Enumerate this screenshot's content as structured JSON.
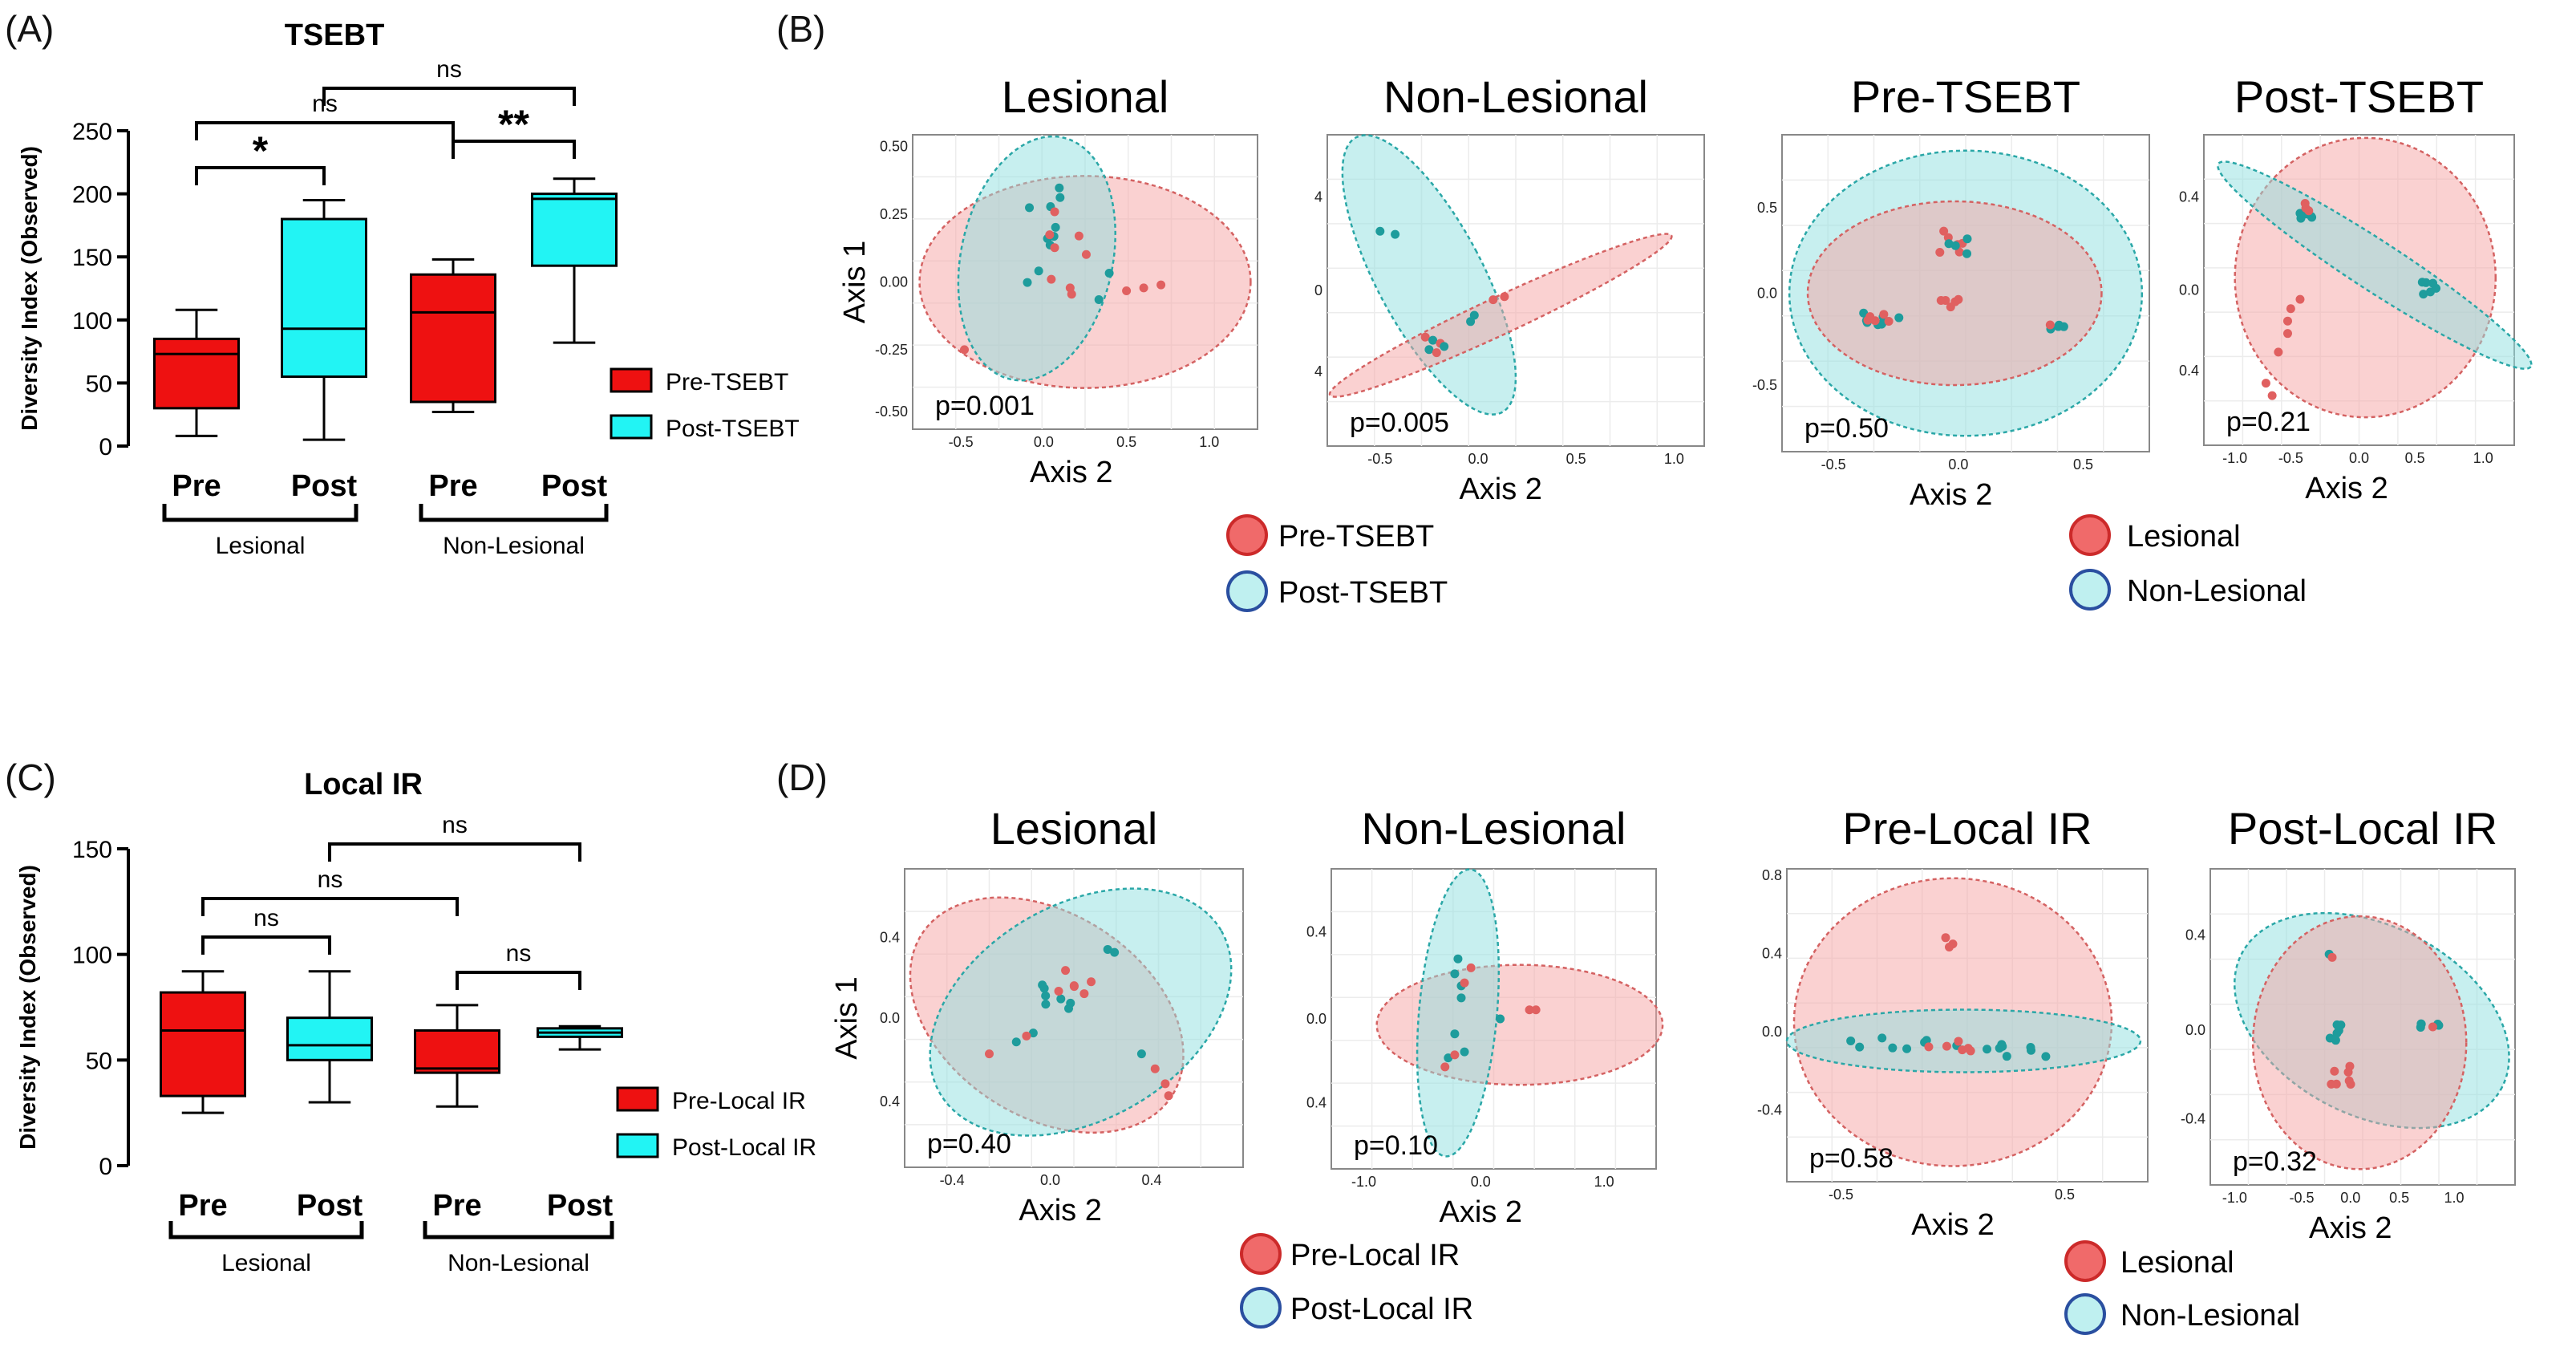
{
  "figure": {
    "panels": {
      "A": "(A)",
      "B": "(B)",
      "C": "(C)",
      "D": "(D)"
    },
    "colors": {
      "red": "#ee1111",
      "cyan": "#22f4f4",
      "ellipse_red": "#f5a3a3",
      "ellipse_cyan": "#8fe0e0",
      "point_red": "#e06060",
      "point_cyan": "#1e9c9c"
    },
    "legend_boxA": {
      "pre": "Pre-TSEBT",
      "post": "Post-TSEBT"
    },
    "legend_boxC": {
      "pre": "Pre-Local IR",
      "post": "Post-Local IR"
    },
    "legend_B_left": {
      "a": "Pre-TSEBT",
      "b": "Post-TSEBT"
    },
    "legend_B_right": {
      "a": "Lesional",
      "b": "Non-Lesional"
    },
    "legend_D_left": {
      "a": "Pre-Local IR",
      "b": "Post-Local IR"
    },
    "legend_D_right": {
      "a": "Lesional",
      "b": "Non-Lesional"
    },
    "pca_axis_x": "Axis 2",
    "pca_axis_y": "Axis 1"
  },
  "chart_data": [
    {
      "id": "A",
      "type": "box",
      "title": "TSEBT",
      "ylabel": "Diversity Index (Observed)",
      "ylim": [
        0,
        250
      ],
      "yticks": [
        "0",
        "50",
        "100",
        "150",
        "200",
        "250"
      ],
      "categories": [
        "Pre",
        "Post",
        "Pre",
        "Post"
      ],
      "groups": [
        "Lesional",
        "Non-Lesional"
      ],
      "series": [
        {
          "name": "Pre-TSEBT",
          "group": "Lesional",
          "min": 8,
          "q1": 30,
          "median": 73,
          "q3": 85,
          "max": 108
        },
        {
          "name": "Post-TSEBT",
          "group": "Lesional",
          "min": 5,
          "q1": 55,
          "median": 93,
          "q3": 180,
          "max": 195
        },
        {
          "name": "Pre-TSEBT",
          "group": "Non-Lesional",
          "min": 27,
          "q1": 35,
          "median": 106,
          "q3": 136,
          "max": 148
        },
        {
          "name": "Post-TSEBT",
          "group": "Non-Lesional",
          "min": 82,
          "q1": 143,
          "median": 196,
          "q3": 200,
          "max": 212
        }
      ],
      "significance": [
        "*",
        "**",
        "ns",
        "ns"
      ]
    },
    {
      "id": "C",
      "type": "box",
      "title": "Local IR",
      "ylabel": "Diversity Index (Observed)",
      "ylim": [
        0,
        150
      ],
      "yticks": [
        "0",
        "50",
        "100",
        "150"
      ],
      "categories": [
        "Pre",
        "Post",
        "Pre",
        "Post"
      ],
      "groups": [
        "Lesional",
        "Non-Lesional"
      ],
      "series": [
        {
          "name": "Pre-Local IR",
          "group": "Lesional",
          "min": 25,
          "q1": 33,
          "median": 64,
          "q3": 82,
          "max": 92
        },
        {
          "name": "Post-Local IR",
          "group": "Lesional",
          "min": 30,
          "q1": 50,
          "median": 57,
          "q3": 70,
          "max": 92
        },
        {
          "name": "Pre-Local IR",
          "group": "Non-Lesional",
          "min": 28,
          "q1": 44,
          "median": 46,
          "q3": 64,
          "max": 76
        },
        {
          "name": "Post-Local IR",
          "group": "Non-Lesional",
          "min": 55,
          "q1": 61,
          "median": 63,
          "q3": 65,
          "max": 66
        }
      ],
      "significance": [
        "ns",
        "ns",
        "ns",
        "ns"
      ]
    },
    {
      "id": "B1",
      "type": "scatter",
      "title": "Lesional",
      "pvalue": "p=0.001",
      "xticks": [
        "-0.5",
        "0.0",
        "0.5",
        "1.0"
      ],
      "yticks": [
        "0.50",
        "0.25",
        "0.00",
        "-0.25",
        "-0.50"
      ]
    },
    {
      "id": "B2",
      "type": "scatter",
      "title": "Non-Lesional",
      "pvalue": "p=0.005",
      "xticks": [
        "-0.5",
        "0.0",
        "0.5",
        "1.0"
      ],
      "yticks": [
        "4",
        "0",
        "4"
      ]
    },
    {
      "id": "B3",
      "type": "scatter",
      "title": "Pre-TSEBT",
      "pvalue": "p=0.50",
      "xticks": [
        "-0.5",
        "0.0",
        "0.5"
      ],
      "yticks": [
        "0.5",
        "0.0",
        "-0.5"
      ]
    },
    {
      "id": "B4",
      "type": "scatter",
      "title": "Post-TSEBT",
      "pvalue": "p=0.21",
      "xticks": [
        "-1.0",
        "-0.5",
        "0.0",
        "0.5",
        "1.0"
      ],
      "yticks": [
        "0.4",
        "0.0",
        "0.4"
      ]
    },
    {
      "id": "D1",
      "type": "scatter",
      "title": "Lesional",
      "pvalue": "p=0.40",
      "xticks": [
        "-0.4",
        "0.0",
        "0.4"
      ],
      "yticks": [
        "0.4",
        "0.0",
        "0.4"
      ]
    },
    {
      "id": "D2",
      "type": "scatter",
      "title": "Non-Lesional",
      "pvalue": "p=0.10",
      "xticks": [
        "-1.0",
        "0.0",
        "1.0"
      ],
      "yticks": [
        "0.4",
        "0.0",
        "0.4"
      ]
    },
    {
      "id": "D3",
      "type": "scatter",
      "title": "Pre-Local IR",
      "pvalue": "p=0.58",
      "xticks": [
        "-0.5",
        "0.5"
      ],
      "yticks": [
        "0.8",
        "0.4",
        "0.0",
        "-0.4"
      ]
    },
    {
      "id": "D4",
      "type": "scatter",
      "title": "Post-Local IR",
      "pvalue": "p=0.32",
      "xticks": [
        "-1.0",
        "-0.5",
        "0.0",
        "0.5",
        "1.0"
      ],
      "yticks": [
        "0.4",
        "0.0",
        "-0.4"
      ]
    }
  ]
}
